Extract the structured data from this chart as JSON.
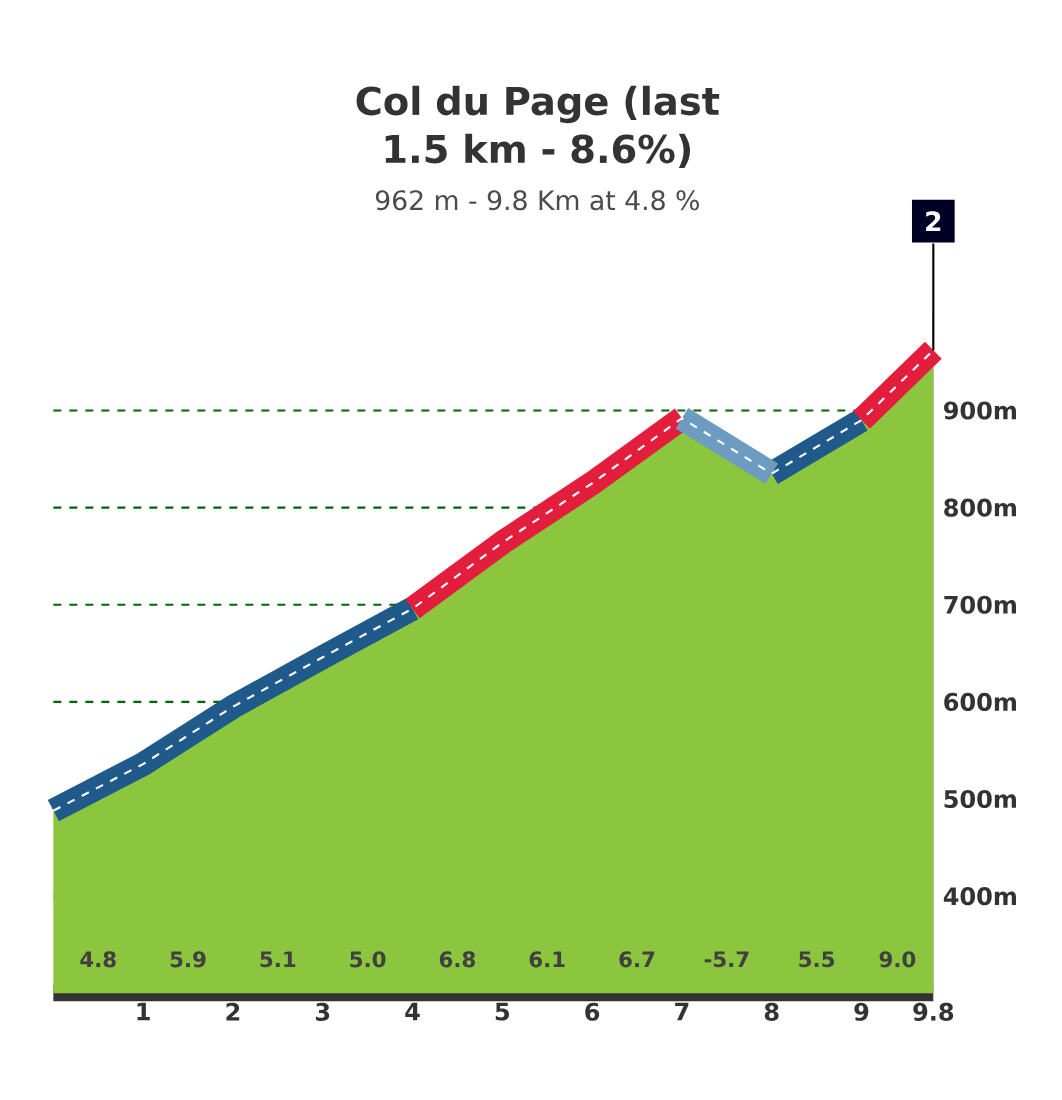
{
  "chart_data": {
    "type": "area",
    "title": "Col du Page (last 1.5 km - 8.6%)",
    "subtitle": "962 m - 9.8 Km at 4.8 %",
    "x": [
      0,
      1,
      2,
      3,
      4,
      5,
      6,
      7,
      8,
      9,
      9.8
    ],
    "series": [
      {
        "color": "#8cc63f",
        "values": [
          488,
          536,
          595,
          646,
          696,
          764,
          825,
          892,
          835,
          890,
          962
        ]
      },
      {
        "type": "line",
        "color": "#1f5a8a",
        "values": [
          488,
          536,
          595,
          646,
          696,
          null,
          null,
          null,
          835,
          890,
          null
        ]
      },
      {
        "type": "line",
        "color": "#e31e3c",
        "values": [
          null,
          null,
          null,
          null,
          696,
          764,
          825,
          892,
          null,
          890,
          962
        ]
      },
      {
        "type": "line",
        "color": "#6d9cc0",
        "values": [
          null,
          null,
          null,
          null,
          null,
          null,
          null,
          892,
          835,
          null,
          null
        ]
      }
    ],
    "xlim": [
      0,
      9.8
    ],
    "xticks": [
      1,
      2,
      3,
      4,
      5,
      6,
      7,
      8,
      9,
      9.8
    ],
    "ylim": [
      300,
      1000
    ],
    "yticks": [
      {
        "value": 400,
        "label": "400m"
      },
      {
        "value": 500,
        "label": "500m"
      },
      {
        "value": 600,
        "label": "600m"
      },
      {
        "value": 700,
        "label": "700m"
      },
      {
        "value": 800,
        "label": "800m"
      },
      {
        "value": 900,
        "label": "900m"
      }
    ],
    "grid": true,
    "annotations": [
      "4.8",
      "5.9",
      "5.1",
      "5.0",
      "6.8",
      "6.1",
      "6.7",
      "-5.7",
      "5.5",
      "9.0",
      {
        "text": "2",
        "x": 9.8,
        "y": 962
      }
    ]
  }
}
